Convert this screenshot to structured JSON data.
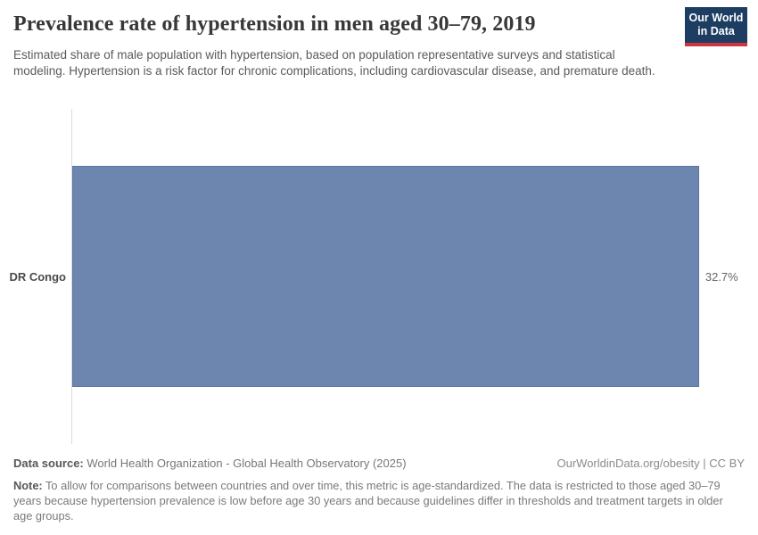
{
  "header": {
    "title": "Prevalence rate of hypertension in men aged 30–79, 2019",
    "subtitle": "Estimated share of male population with hypertension, based on population representative surveys and statistical modeling. Hypertension is a risk factor for chronic complications, including cardiovascular disease, and premature death.",
    "logo": {
      "line1": "Our World",
      "line2": "in Data"
    }
  },
  "chart_data": {
    "type": "bar",
    "orientation": "horizontal",
    "title": "Prevalence rate of hypertension in men aged 30–79, 2019",
    "categories": [
      "DR Congo"
    ],
    "values": [
      32.7
    ],
    "value_labels": [
      "32.7%"
    ],
    "unit": "%",
    "xlabel": "",
    "ylabel": "",
    "xlim": [
      0,
      32.7
    ],
    "grid": false,
    "legend": false
  },
  "footer": {
    "data_source_label": "Data source:",
    "data_source_text": "World Health Organization - Global Health Observatory (2025)",
    "attribution": "OurWorldinData.org/obesity | CC BY",
    "note_label": "Note:",
    "note_text": "To allow for comparisons between countries and over time, this metric is age-standardized. The data is restricted to those aged 30–79 years because hypertension prevalence is low before age 30 years and because guidelines differ in thresholds and treatment targets in older age groups."
  },
  "colors": {
    "bar": "#6c86b0",
    "bar_border": "#5e77a2",
    "logo_background": "#1d3d63",
    "logo_rule": "#cf3540",
    "axis_line": "#dcdcdc"
  }
}
